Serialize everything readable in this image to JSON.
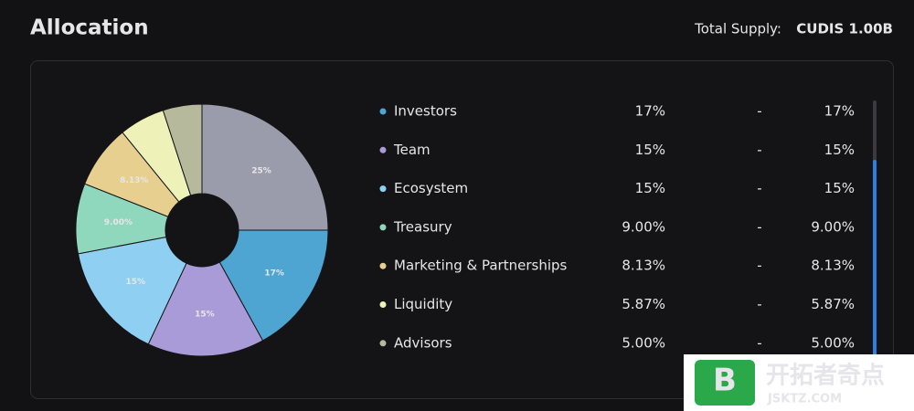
{
  "header": {
    "title": "Allocation",
    "supply_label": "Total Supply:",
    "supply_value": "CUDIS 1.00B"
  },
  "chart_data": {
    "type": "pie",
    "categories": [
      null,
      "Investors",
      "Team",
      "Ecosystem",
      "Treasury",
      "Marketing & Partnerships",
      "Liquidity",
      "Advisors"
    ],
    "values": [
      25,
      17,
      15,
      15,
      9,
      8.13,
      5.87,
      5
    ],
    "value_labels": [
      "25%",
      "17%",
      "15%",
      "15%",
      "9.00%",
      "8.13%",
      null,
      null
    ],
    "colors": [
      "#9b9cab",
      "#4ea5d2",
      "#a89bd8",
      "#8fd0f2",
      "#8fd7bd",
      "#e7cf8f",
      "#eef2b9",
      "#b6b99b"
    ]
  },
  "table": {
    "rows": [
      {
        "share": "17%",
        "dash": "-",
        "amount": "17%"
      },
      {
        "share": "15%",
        "dash": "-",
        "amount": "15%"
      },
      {
        "share": "15%",
        "dash": "-",
        "amount": "15%"
      },
      {
        "share": "9.00%",
        "dash": "-",
        "amount": "9.00%"
      },
      {
        "share": "8.13%",
        "dash": "-",
        "amount": "8.13%"
      },
      {
        "share": "5.87%",
        "dash": "-",
        "amount": "5.87%"
      },
      {
        "share": "5.00%",
        "dash": "-",
        "amount": "5.00%"
      }
    ]
  },
  "watermark": {
    "brand": "开拓者奇点",
    "site": "JSKTZ.COM",
    "icon": "B"
  }
}
